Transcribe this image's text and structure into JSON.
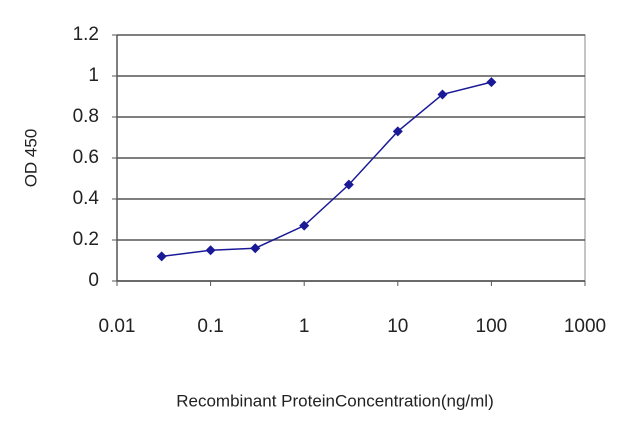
{
  "chart_data": {
    "type": "line",
    "x_label": "Recombinant ProteinConcentration(ng/ml)",
    "y_label": "OD 450",
    "x": [
      0.03,
      0.1,
      0.3,
      1,
      3,
      10,
      30,
      100
    ],
    "series": [
      {
        "color": "#1a1a99",
        "values": [
          0.12,
          0.15,
          0.16,
          0.27,
          0.47,
          0.73,
          0.91,
          0.97
        ]
      }
    ],
    "xscale": "log",
    "xlim": [
      0.01,
      1000
    ],
    "xticks": [
      0.01,
      0.1,
      1,
      10,
      100,
      1000
    ],
    "ylim": [
      0,
      1.2
    ],
    "yticks": [
      0,
      0.2,
      0.4,
      0.6,
      0.8,
      1,
      1.2
    ],
    "grid": true
  }
}
